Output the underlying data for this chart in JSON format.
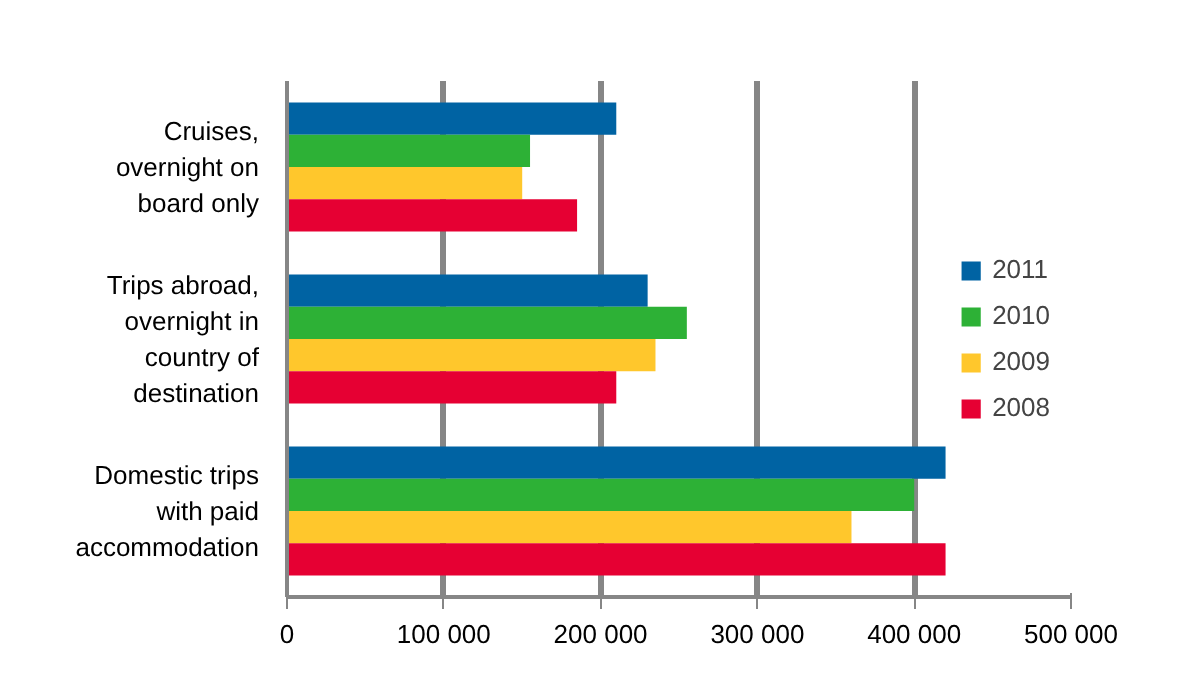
{
  "chart_data": {
    "type": "bar",
    "orientation": "horizontal",
    "categories": [
      "Cruises, overnight on board only",
      "Trips abroad, overnight in country of destination",
      "Domestic trips with paid accommodation"
    ],
    "series": [
      {
        "name": "2011",
        "color": "#0063a3",
        "values": [
          210000,
          230000,
          420000
        ]
      },
      {
        "name": "2010",
        "color": "#2db136",
        "values": [
          155000,
          255000,
          400000
        ]
      },
      {
        "name": "2009",
        "color": "#ffc72c",
        "values": [
          150000,
          235000,
          360000
        ]
      },
      {
        "name": "2008",
        "color": "#e60033",
        "values": [
          185000,
          210000,
          420000
        ]
      }
    ],
    "xlim": [
      0,
      500000
    ],
    "xticks": [
      0,
      {
        "value": 100000,
        "label": "100 000"
      },
      {
        "value": 200000,
        "label": "200 000"
      },
      {
        "value": 300000,
        "label": "300 000"
      },
      {
        "value": 400000,
        "label": "400 000"
      },
      {
        "value": 500000,
        "label": "500 000"
      }
    ],
    "grid": "x",
    "legend": "right"
  }
}
